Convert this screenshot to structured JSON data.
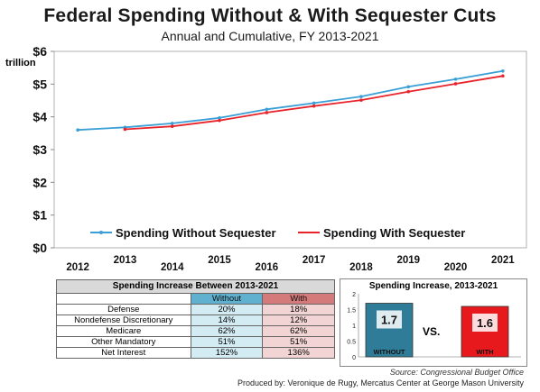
{
  "title": "Federal Spending Without & With Sequester Cuts",
  "subtitle": "Annual and Cumulative, FY 2013-2021",
  "unit_label": "trillion",
  "chart_data": [
    {
      "type": "line",
      "ylim": [
        0,
        6
      ],
      "y_ticks": [
        "$0",
        "$1",
        "$2",
        "$3",
        "$4",
        "$5",
        "$6"
      ],
      "x": [
        "2012",
        "2013",
        "2014",
        "2015",
        "2016",
        "2017",
        "2018",
        "2019",
        "2020",
        "2021"
      ],
      "grid": false,
      "legend_position": "bottom",
      "series": [
        {
          "name": "Spending Without Sequester",
          "color": "#3a9fd6",
          "values": [
            3.6,
            3.68,
            3.8,
            3.97,
            4.23,
            4.42,
            4.62,
            4.92,
            5.15,
            5.4
          ]
        },
        {
          "name": "Spending With Sequester",
          "color": "#e8242a",
          "values": [
            null,
            3.62,
            3.71,
            3.89,
            4.13,
            4.33,
            4.51,
            4.77,
            5.01,
            5.25
          ]
        }
      ]
    },
    {
      "type": "bar",
      "title": "Spending Increase, 2013-2021",
      "ylim": [
        0,
        2
      ],
      "y_ticks": [
        "0",
        "0.5",
        "1",
        "1.5",
        "2"
      ],
      "categories": [
        "WITHOUT",
        "WITH"
      ],
      "values": [
        1.7,
        1.6
      ],
      "value_labels": [
        "1.7",
        "1.6"
      ],
      "colors": [
        "#2f7c98",
        "#e8191c"
      ]
    }
  ],
  "table": {
    "caption": "Spending Increase Between 2013-2021",
    "col_without": "Without",
    "col_with": "With",
    "rows": [
      {
        "label": "Defense",
        "without": "20%",
        "with": "18%"
      },
      {
        "label": "Nondefense Discretionary",
        "without": "14%",
        "with": "12%"
      },
      {
        "label": "Medicare",
        "without": "62%",
        "with": "62%"
      },
      {
        "label": "Other Mandatory",
        "without": "51%",
        "with": "51%"
      },
      {
        "label": "Net Interest",
        "without": "152%",
        "with": "136%"
      }
    ]
  },
  "vs_label": "VS.",
  "source": "Source: Congressional Budget Office",
  "producer": "Produced by: Veronique de Rugy, Mercatus Center at George Mason University"
}
